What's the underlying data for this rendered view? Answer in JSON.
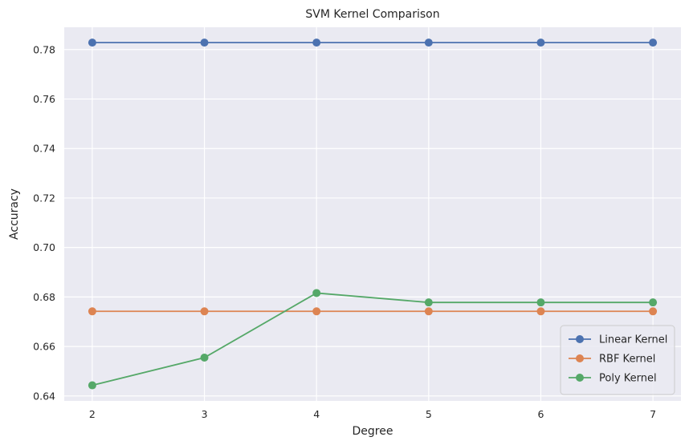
{
  "chart_data": {
    "type": "line",
    "title": "SVM Kernel Comparison",
    "xlabel": "Degree",
    "ylabel": "Accuracy",
    "x": [
      2,
      3,
      4,
      5,
      6,
      7
    ],
    "xticks": [
      "2",
      "3",
      "4",
      "5",
      "6",
      "7"
    ],
    "yticks": [
      "0.64",
      "0.66",
      "0.68",
      "0.70",
      "0.72",
      "0.74",
      "0.76",
      "0.78"
    ],
    "xlim": [
      1.75,
      7.25
    ],
    "ylim": [
      0.638,
      0.789
    ],
    "grid": true,
    "legend_position": "lower-right",
    "series": [
      {
        "name": "Linear Kernel",
        "color": "#4c72b0",
        "values": [
          0.7828,
          0.7828,
          0.7828,
          0.7828,
          0.7828,
          0.7828
        ]
      },
      {
        "name": "RBF Kernel",
        "color": "#dd8452",
        "values": [
          0.6742,
          0.6742,
          0.6742,
          0.6742,
          0.6742,
          0.6742
        ]
      },
      {
        "name": "Poly Kernel",
        "color": "#55a868",
        "values": [
          0.6443,
          0.6555,
          0.6816,
          0.6778,
          0.6778,
          0.6778
        ]
      }
    ],
    "colors": {
      "plot_background": "#eaeaf2",
      "grid": "#ffffff"
    }
  }
}
